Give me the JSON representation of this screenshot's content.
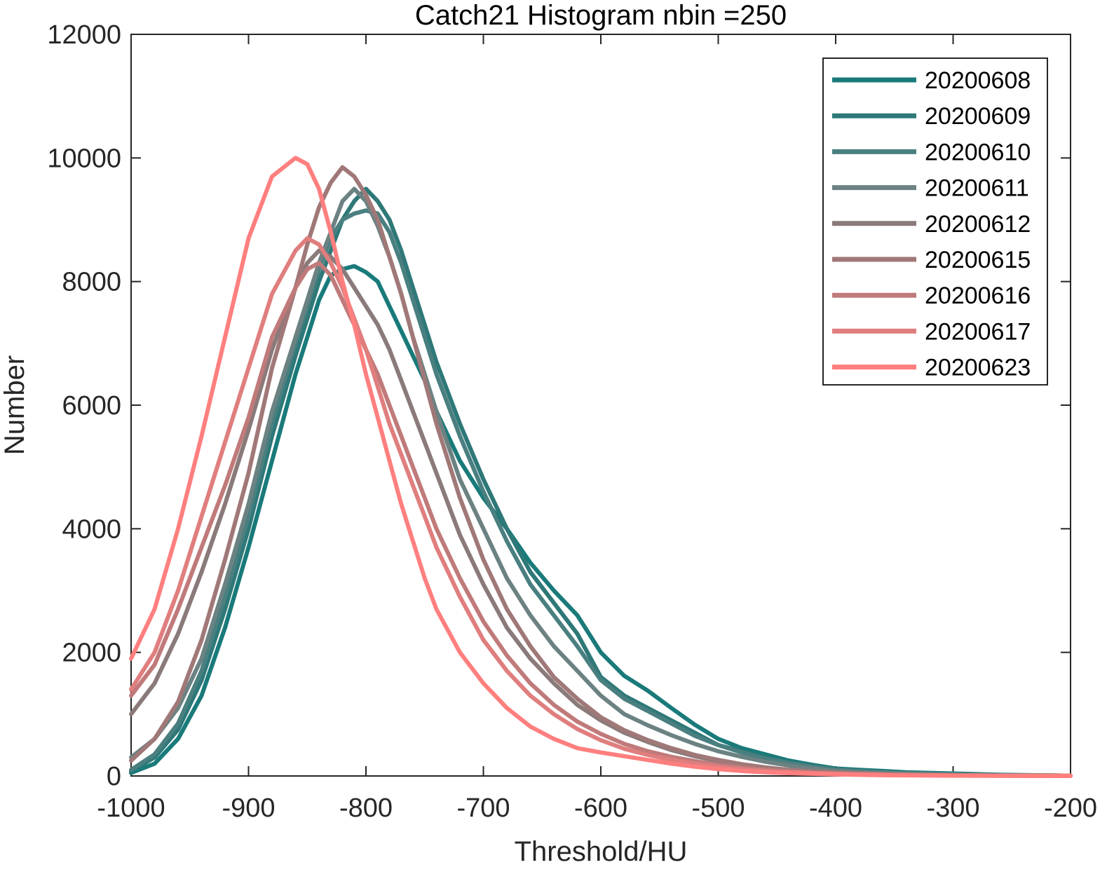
{
  "chart_data": {
    "type": "line",
    "title": "Catch21  Histogram nbin =250",
    "xlabel": "Threshold/HU",
    "ylabel": "Number",
    "xlim": [
      -1000,
      -200
    ],
    "ylim": [
      0,
      12000
    ],
    "xticks": [
      -1000,
      -900,
      -800,
      -700,
      -600,
      -500,
      -400,
      -300,
      -200
    ],
    "yticks": [
      0,
      2000,
      4000,
      6000,
      8000,
      10000,
      12000
    ],
    "grid": false,
    "legend_position": "top-right",
    "x": [
      -1000,
      -980,
      -960,
      -940,
      -920,
      -900,
      -880,
      -860,
      -850,
      -840,
      -830,
      -820,
      -810,
      -800,
      -790,
      -780,
      -770,
      -760,
      -750,
      -740,
      -720,
      -700,
      -680,
      -660,
      -640,
      -620,
      -600,
      -580,
      -560,
      -540,
      -520,
      -500,
      -480,
      -460,
      -440,
      -420,
      -400,
      -380,
      -360,
      -340,
      -320,
      -300,
      -280,
      -260,
      -240,
      -220,
      -200
    ],
    "series": [
      {
        "name": "20200608",
        "color": "#1a7a7a",
        "values": [
          50,
          200,
          600,
          1300,
          2400,
          3700,
          5100,
          6500,
          7100,
          7700,
          8100,
          8200,
          8250,
          8150,
          8000,
          7600,
          7200,
          6800,
          6400,
          5900,
          5100,
          4500,
          4000,
          3450,
          3000,
          2600,
          2000,
          1620,
          1380,
          1100,
          830,
          600,
          450,
          350,
          250,
          180,
          120,
          100,
          80,
          60,
          50,
          40,
          30,
          20,
          15,
          10,
          5
        ]
      },
      {
        "name": "20200609",
        "color": "#2e7878",
        "values": [
          80,
          300,
          750,
          1550,
          2700,
          4000,
          5500,
          6800,
          7400,
          8000,
          8500,
          9000,
          9300,
          9500,
          9300,
          9000,
          8500,
          7900,
          7300,
          6700,
          5700,
          4800,
          4000,
          3300,
          2800,
          2300,
          1600,
          1300,
          1100,
          900,
          700,
          500,
          400,
          300,
          220,
          160,
          110,
          80,
          60,
          45,
          35,
          25,
          20,
          15,
          10,
          8,
          5
        ]
      },
      {
        "name": "20200610",
        "color": "#4a7f80",
        "values": [
          100,
          350,
          850,
          1700,
          2900,
          4200,
          5700,
          7000,
          7600,
          8200,
          8700,
          9000,
          9100,
          9150,
          9100,
          8800,
          8300,
          7700,
          7100,
          6500,
          5500,
          4600,
          3800,
          3100,
          2600,
          2100,
          1550,
          1250,
          1050,
          850,
          650,
          500,
          380,
          280,
          210,
          150,
          100,
          80,
          60,
          45,
          35,
          25,
          20,
          15,
          10,
          8,
          5
        ]
      },
      {
        "name": "20200611",
        "color": "#6c8282",
        "values": [
          300,
          600,
          1100,
          1900,
          3100,
          4400,
          5900,
          7100,
          7700,
          8300,
          8800,
          9300,
          9500,
          9300,
          8900,
          8400,
          7800,
          7100,
          6500,
          5900,
          4800,
          4000,
          3200,
          2600,
          2100,
          1700,
          1300,
          1000,
          820,
          660,
          520,
          400,
          310,
          230,
          170,
          120,
          80,
          60,
          45,
          35,
          25,
          20,
          15,
          12,
          10,
          8,
          5
        ]
      },
      {
        "name": "20200612",
        "color": "#8a7a7a",
        "values": [
          1000,
          1500,
          2300,
          3300,
          4400,
          5600,
          6900,
          7900,
          8300,
          8500,
          8400,
          8200,
          7900,
          7600,
          7300,
          6900,
          6400,
          5900,
          5400,
          4900,
          3900,
          3100,
          2400,
          1900,
          1500,
          1150,
          900,
          700,
          550,
          420,
          320,
          240,
          180,
          130,
          100,
          75,
          55,
          40,
          30,
          22,
          16,
          12,
          8,
          6,
          5,
          4,
          3
        ]
      },
      {
        "name": "20200615",
        "color": "#a07878",
        "values": [
          250,
          600,
          1200,
          2200,
          3500,
          4900,
          6600,
          7900,
          8600,
          9200,
          9600,
          9850,
          9700,
          9400,
          9000,
          8400,
          7800,
          7100,
          6400,
          5700,
          4500,
          3500,
          2700,
          2100,
          1600,
          1250,
          950,
          740,
          580,
          450,
          340,
          260,
          190,
          140,
          100,
          75,
          55,
          40,
          30,
          22,
          16,
          12,
          8,
          6,
          5,
          4,
          3
        ]
      },
      {
        "name": "20200616",
        "color": "#c07a7a",
        "values": [
          1300,
          1800,
          2700,
          3700,
          4700,
          5800,
          7100,
          7900,
          8200,
          8300,
          8100,
          7700,
          7300,
          6900,
          6500,
          6000,
          5500,
          5000,
          4500,
          4000,
          3200,
          2500,
          1950,
          1500,
          1150,
          880,
          680,
          520,
          400,
          310,
          240,
          180,
          135,
          100,
          75,
          55,
          40,
          30,
          22,
          16,
          12,
          9,
          7,
          5,
          4,
          3,
          2
        ]
      },
      {
        "name": "20200617",
        "color": "#e07e7e",
        "values": [
          1400,
          2000,
          3000,
          4200,
          5400,
          6600,
          7800,
          8500,
          8700,
          8600,
          8300,
          7900,
          7400,
          6900,
          6300,
          5700,
          5200,
          4700,
          4200,
          3700,
          2900,
          2200,
          1700,
          1300,
          1000,
          760,
          580,
          440,
          340,
          260,
          200,
          150,
          110,
          80,
          60,
          45,
          35,
          25,
          18,
          13,
          10,
          7,
          5,
          4,
          3,
          2,
          2
        ]
      },
      {
        "name": "20200623",
        "color": "#ff7f7f",
        "values": [
          1900,
          2700,
          4000,
          5500,
          7100,
          8700,
          9700,
          10000,
          9900,
          9500,
          8800,
          8000,
          7300,
          6500,
          5800,
          5100,
          4400,
          3800,
          3200,
          2700,
          2000,
          1500,
          1100,
          800,
          600,
          450,
          380,
          320,
          260,
          200,
          150,
          110,
          80,
          60,
          45,
          35,
          25,
          18,
          13,
          10,
          7,
          5,
          4,
          3,
          2,
          2,
          1
        ]
      }
    ]
  }
}
